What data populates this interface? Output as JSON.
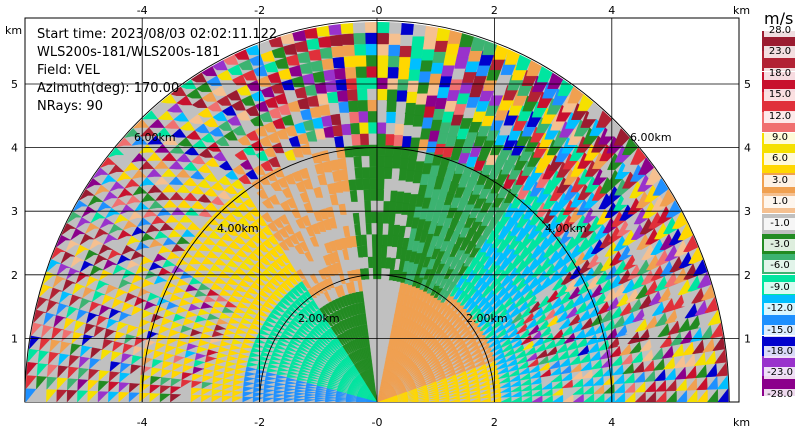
{
  "info": {
    "start_time": "Start time: 2023/08/03 02:02:11.122",
    "instrument": "WLS200s-181/WLS200s-181",
    "field": "Field: VEL",
    "azimuth": "Azimuth(deg): 170.00",
    "nrays": "NRays: 90"
  },
  "axes": {
    "x_unit": "km",
    "y_unit": "km",
    "x_ticks": [
      "-4",
      "-2",
      "-0",
      "2",
      "4"
    ],
    "y_ticks": [
      "1",
      "2",
      "3",
      "4",
      "5"
    ]
  },
  "range_rings": [
    "2.00km",
    "4.00km",
    "6.00km"
  ],
  "colorbar": {
    "unit": "m/s",
    "levels": [
      "28.0",
      "23.0",
      "18.0",
      "15.0",
      "12.0",
      "9.0",
      "6.0",
      "3.0",
      "1.0",
      "-1.0",
      "-3.0",
      "-6.0",
      "-9.0",
      "-12.0",
      "-15.0",
      "-18.0",
      "-23.0",
      "-28.0"
    ],
    "colors": [
      "#9b1b30",
      "#b22234",
      "#c8102e",
      "#e0303a",
      "#f07070",
      "#f5e000",
      "#ffd700",
      "#f0a050",
      "#f5c090",
      "#c0c0c0",
      "#228b22",
      "#3cb371",
      "#00e5a0",
      "#00bfff",
      "#1e90ff",
      "#0000cd",
      "#9932cc",
      "#8b008b"
    ]
  }
}
